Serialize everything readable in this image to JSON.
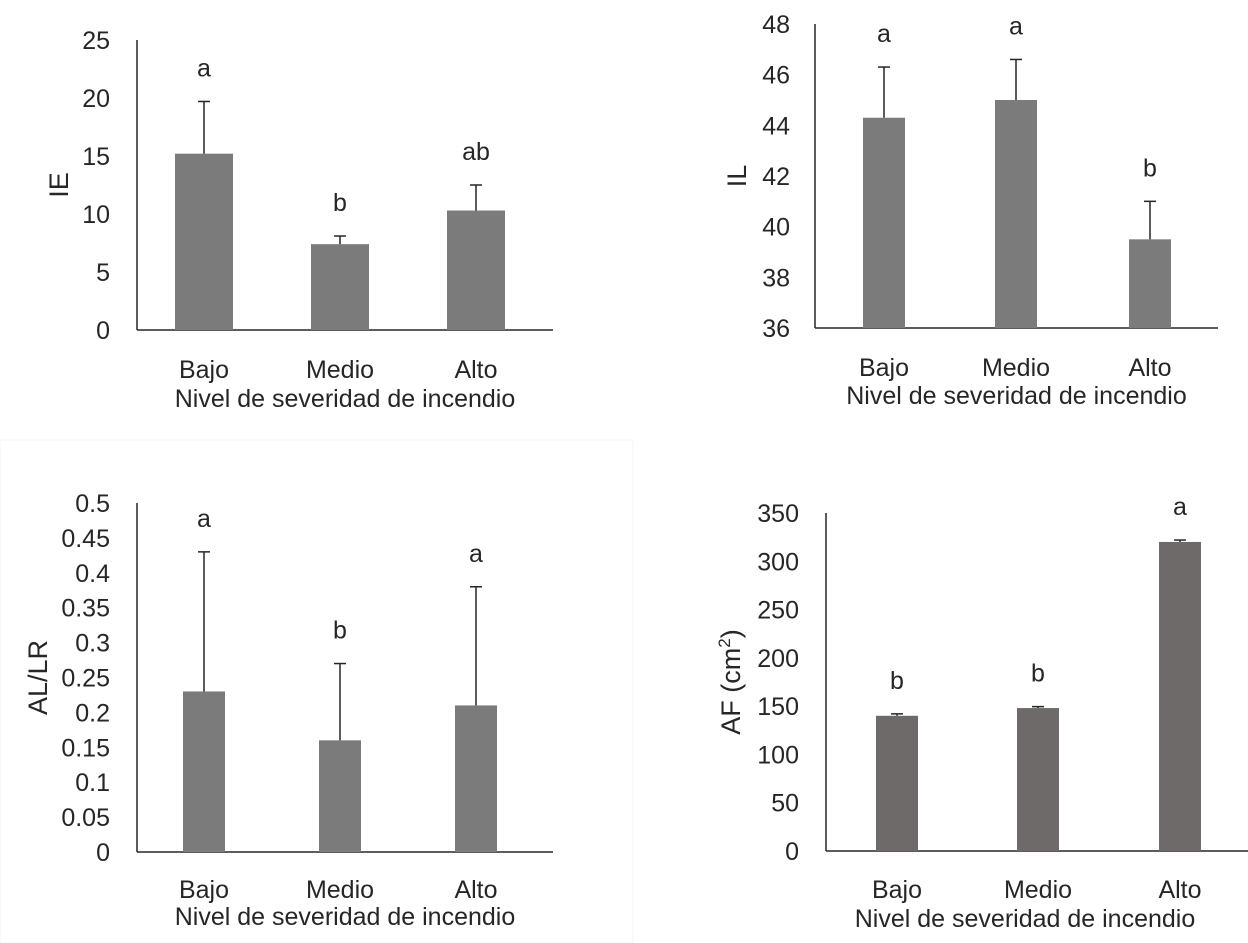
{
  "chart_data": [
    {
      "type": "bar",
      "title": "",
      "categories": [
        "Bajo",
        "Medio",
        "Alto"
      ],
      "values": [
        15.2,
        7.4,
        10.3
      ],
      "errors": [
        4.5,
        0.7,
        2.2
      ],
      "letters": [
        "a",
        "b",
        "ab"
      ],
      "xlabel": "Nivel de severidad de incendio",
      "ylabel": "IE",
      "ylabel_sup": "",
      "ylim": [
        0,
        25
      ],
      "yticks": [
        "0",
        "5",
        "10",
        "15",
        "20",
        "25"
      ],
      "bar_color": "#7b7b7b",
      "grid": false
    },
    {
      "type": "bar",
      "title": "",
      "categories": [
        "Bajo",
        "Medio",
        "Alto"
      ],
      "values": [
        44.3,
        45.0,
        39.5
      ],
      "errors": [
        2.0,
        1.6,
        1.5
      ],
      "letters": [
        "a",
        "a",
        "b"
      ],
      "xlabel": "Nivel de severidad de incendio",
      "ylabel": "IL",
      "ylabel_sup": "",
      "ylim": [
        36,
        48
      ],
      "yticks": [
        "36",
        "38",
        "40",
        "42",
        "44",
        "46",
        "48"
      ],
      "bar_color": "#7b7b7b",
      "grid": false
    },
    {
      "type": "bar",
      "title": "",
      "categories": [
        "Bajo",
        "Medio",
        "Alto"
      ],
      "values": [
        0.23,
        0.16,
        0.21
      ],
      "errors": [
        0.2,
        0.11,
        0.17
      ],
      "letters": [
        "a",
        "b",
        "a"
      ],
      "xlabel": "Nivel de severidad de incendio",
      "ylabel": "AL/LR",
      "ylabel_sup": "",
      "ylim": [
        0,
        0.5
      ],
      "yticks": [
        "0",
        "0.05",
        "0.1",
        "0.15",
        "0.2",
        "0.25",
        "0.3",
        "0.35",
        "0.4",
        "0.45",
        "0.5"
      ],
      "bar_color": "#7b7b7b",
      "grid": false
    },
    {
      "type": "bar",
      "title": "",
      "categories": [
        "Bajo",
        "Medio",
        "Alto"
      ],
      "values": [
        140,
        148,
        320
      ],
      "errors": [
        2,
        1.5,
        2
      ],
      "letters": [
        "b",
        "b",
        "a"
      ],
      "xlabel": "Nivel de severidad de incendio",
      "ylabel": "AF (cm",
      "ylabel_sup": "2",
      "ylabel_close": ")",
      "ylim": [
        0,
        350
      ],
      "yticks": [
        "0",
        "50",
        "100",
        "150",
        "200",
        "250",
        "300",
        "350"
      ],
      "bar_color": "#6f6a6a",
      "grid": false
    }
  ]
}
